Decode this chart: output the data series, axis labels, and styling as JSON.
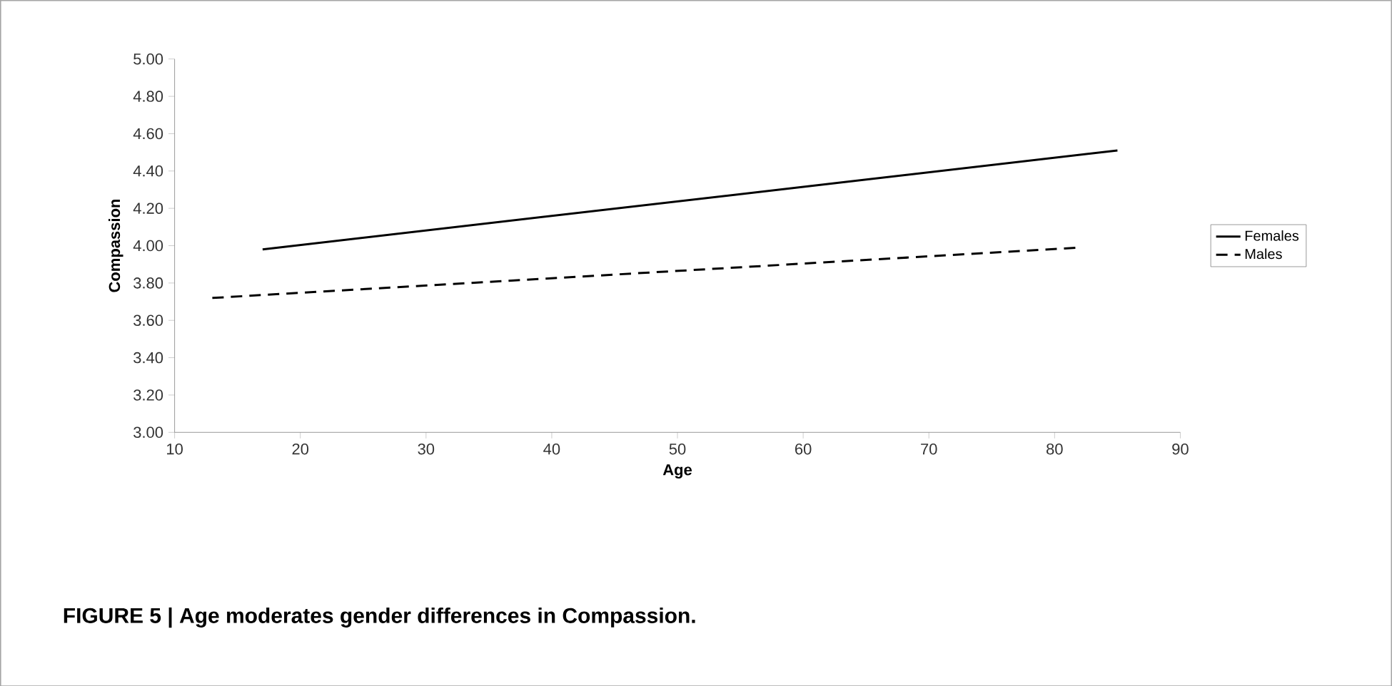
{
  "chart_data": {
    "type": "line",
    "xlabel": "Age",
    "ylabel": "Compassion",
    "annotations": [
      "FIGURE 5 | Age moderates gender differences in Compassion."
    ],
    "series": [
      {
        "name": "Females",
        "color": "#000000",
        "x": [
          17,
          85
        ],
        "values": [
          3.98,
          4.51
        ],
        "line_style": "solid"
      },
      {
        "name": "Males",
        "color": "#000000",
        "x": [
          13,
          82
        ],
        "values": [
          3.72,
          3.99
        ],
        "line_style": "dashed"
      }
    ],
    "xlim": [
      10,
      90
    ],
    "xticks": [
      10,
      20,
      30,
      40,
      50,
      60,
      70,
      80,
      90
    ],
    "ylim": [
      3.0,
      5.0
    ],
    "yticks": [
      {
        "value": 3.0,
        "label": "3.00"
      },
      {
        "value": 3.2,
        "label": "3.20"
      },
      {
        "value": 3.4,
        "label": "3.40"
      },
      {
        "value": 3.6,
        "label": "3.60"
      },
      {
        "value": 3.8,
        "label": "3.80"
      },
      {
        "value": 4.0,
        "label": "4.00"
      },
      {
        "value": 4.2,
        "label": "4.20"
      },
      {
        "value": 4.4,
        "label": "4.40"
      },
      {
        "value": 4.6,
        "label": "4.60"
      },
      {
        "value": 4.8,
        "label": "4.80"
      },
      {
        "value": 5.0,
        "label": "5.00"
      }
    ],
    "legend": "right",
    "grid": false
  }
}
